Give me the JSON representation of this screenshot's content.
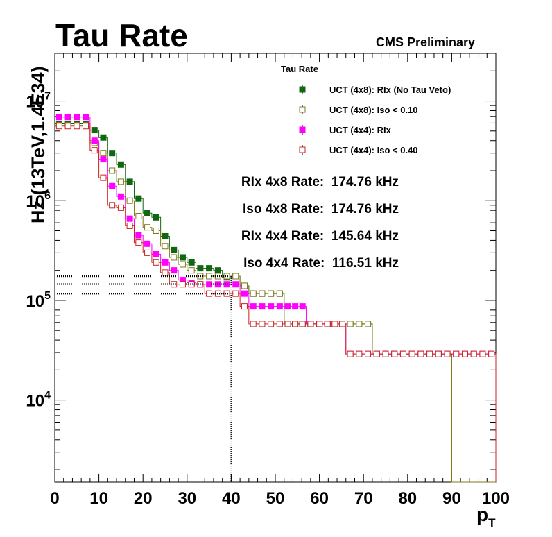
{
  "chart_data": {
    "type": "line",
    "title": "Tau Rate",
    "label": "CMS Preliminary",
    "xlabel_main": "p",
    "xlabel_sub": "T",
    "ylabel": "Hz (13TeV,1.4E34)",
    "xlim": [
      0,
      100
    ],
    "ylim": [
      1500,
      30000000
    ],
    "yscale": "log",
    "x_ticks": [
      "0",
      "10",
      "20",
      "30",
      "40",
      "50",
      "60",
      "70",
      "80",
      "90",
      "100"
    ],
    "y_tick_values": [
      10000,
      100000,
      1000000,
      10000000
    ],
    "y_tick_labels": [
      {
        "base": "10",
        "exp": "4"
      },
      {
        "base": "10",
        "exp": "5"
      },
      {
        "base": "10",
        "exp": "6"
      },
      {
        "base": "10",
        "exp": "7"
      }
    ],
    "legend_title": "Tau Rate",
    "legend_placement": "top-right",
    "series": [
      {
        "name": "UCT (4x8): RIx (No Tau Veto)",
        "color": "#116611",
        "marker": "filled-square",
        "line_color": "#116611",
        "edges": [
          0,
          2,
          4,
          6,
          8,
          10,
          12,
          14,
          16,
          18,
          20,
          22,
          24,
          26,
          28,
          30,
          32,
          34,
          36,
          38,
          40,
          42,
          44,
          46,
          48,
          50,
          52,
          57,
          61,
          66,
          72,
          90,
          100
        ],
        "values": [
          5900000,
          5900000,
          5900000,
          5900000,
          5100000,
          4300000,
          3000000,
          2300000,
          1550000,
          1050000,
          750000,
          680000,
          440000,
          320000,
          270000,
          240000,
          210000,
          210000,
          200000,
          170000,
          175000,
          140000,
          117000,
          117000,
          117000,
          117000,
          58000,
          58000,
          58000,
          58000,
          29000,
          1000
        ]
      },
      {
        "name": "UCT (4x8): Iso < 0.10",
        "color": "#807a1a",
        "marker": "open-square",
        "line_color": "#807a1a",
        "edges": [
          0,
          2,
          4,
          6,
          8,
          10,
          12,
          14,
          16,
          18,
          20,
          22,
          24,
          26,
          28,
          30,
          32,
          34,
          36,
          38,
          40,
          42,
          44,
          46,
          48,
          50,
          52,
          57,
          61,
          66,
          72,
          90,
          100
        ],
        "values": [
          5700000,
          5700000,
          5700000,
          5700000,
          3800000,
          3000000,
          2000000,
          1550000,
          1000000,
          700000,
          540000,
          500000,
          350000,
          270000,
          230000,
          200000,
          175000,
          175000,
          175000,
          175000,
          175000,
          140000,
          117000,
          117000,
          117000,
          117000,
          58000,
          58000,
          58000,
          58000,
          29000,
          1000
        ]
      },
      {
        "name": "UCT (4x4): RIx",
        "color": "#ff00ff",
        "marker": "filled-square",
        "line_color": "#ff00ff",
        "edges": [
          0,
          2,
          4,
          6,
          8,
          10,
          12,
          14,
          16,
          18,
          20,
          22,
          24,
          26,
          28,
          30,
          32,
          34,
          36,
          38,
          40,
          42,
          44,
          46,
          48,
          50,
          52,
          57,
          61,
          66,
          100
        ],
        "values": [
          6900000,
          6900000,
          6900000,
          6900000,
          4000000,
          2600000,
          1400000,
          1100000,
          660000,
          450000,
          370000,
          290000,
          240000,
          200000,
          160000,
          150000,
          145000,
          145000,
          145000,
          145000,
          145000,
          117000,
          87000,
          87000,
          87000,
          87000,
          87000,
          58000,
          58000,
          29000
        ]
      },
      {
        "name": "UCT (4x4): Iso < 0.40",
        "color": "#cc2222",
        "marker": "open-square",
        "line_color": "#cc2222",
        "edges": [
          0,
          2,
          4,
          6,
          8,
          10,
          12,
          14,
          16,
          18,
          20,
          22,
          24,
          26,
          28,
          30,
          32,
          34,
          36,
          38,
          40,
          42,
          44,
          46,
          48,
          50,
          52,
          57,
          61,
          66,
          100
        ],
        "values": [
          5600000,
          5600000,
          5600000,
          5600000,
          3200000,
          1700000,
          900000,
          850000,
          560000,
          380000,
          300000,
          240000,
          190000,
          145000,
          145000,
          145000,
          145000,
          117000,
          117000,
          117000,
          117000,
          87000,
          58000,
          58000,
          58000,
          58000,
          58000,
          58000,
          58000,
          29000
        ]
      }
    ],
    "rates": [
      {
        "label": "RIx 4x8 Rate:  174.76 kHz",
        "value_khz": 174.76
      },
      {
        "label": "Iso 4x8 Rate:  174.76 kHz",
        "value_khz": 174.76
      },
      {
        "label": "RIx 4x4 Rate:  145.64 kHz",
        "value_khz": 145.64
      },
      {
        "label": "Iso 4x4 Rate:  116.51 kHz",
        "value_khz": 116.51
      }
    ],
    "threshold_x": 40,
    "grid": false
  }
}
